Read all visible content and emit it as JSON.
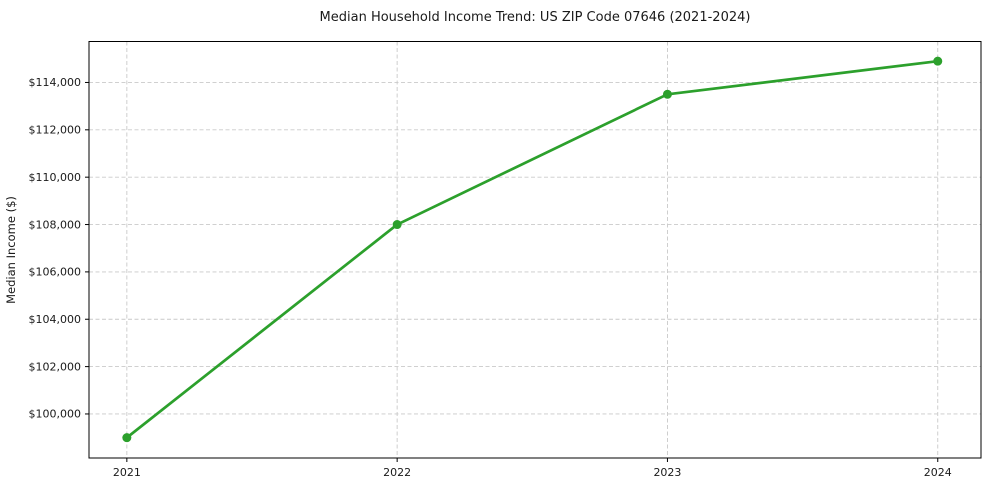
{
  "chart_data": {
    "type": "line",
    "title": "Median Household Income Trend: US ZIP Code 07646 (2021-2024)",
    "xlabel": "",
    "ylabel": "Median Income ($)",
    "x": [
      2021,
      2022,
      2023,
      2024
    ],
    "series": [
      {
        "name": "Median Household Income",
        "values": [
          99000,
          108000,
          113500,
          114900
        ]
      }
    ],
    "xticks": [
      2021,
      2022,
      2023,
      2024
    ],
    "yticks": [
      100000,
      102000,
      104000,
      106000,
      108000,
      110000,
      112000,
      114000
    ],
    "ytick_prefix": "$",
    "xlim": [
      2020.86,
      2024.16
    ],
    "ylim": [
      98140,
      115730
    ],
    "grid": true,
    "grid_style": "dashed",
    "legend_position": "none",
    "marker": "circle",
    "colors": {
      "line": "#2ca02c",
      "marker": "#2ca02c",
      "grid": "#c9c9c9",
      "axis": "#000000",
      "text": "#1a1a1a",
      "background": "#ffffff"
    }
  }
}
